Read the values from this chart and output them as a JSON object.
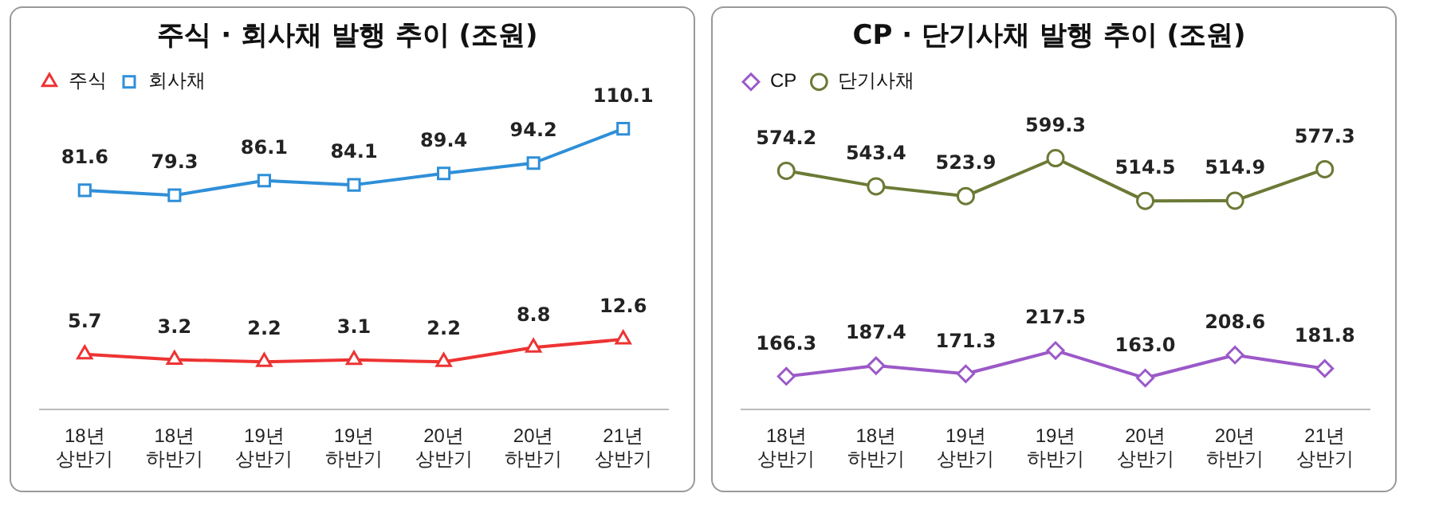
{
  "chart_data": [
    {
      "type": "line",
      "title": "주식 · 회사채 발행 추이 (조원)",
      "categories": [
        "18년\n상반기",
        "18년\n하반기",
        "19년\n상반기",
        "19년\n하반기",
        "20년\n상반기",
        "20년\n하반기",
        "21년\n상반기"
      ],
      "series": [
        {
          "name": "주식",
          "color": "#ee3333",
          "marker": "triangle",
          "values": [
            5.7,
            3.2,
            2.2,
            3.1,
            2.2,
            8.8,
            12.6
          ],
          "value_labels": [
            "5.7",
            "3.2",
            "2.2",
            "3.1",
            "2.2",
            "8.8",
            "12.6"
          ]
        },
        {
          "name": "회사채",
          "color": "#2f8fd8",
          "marker": "square",
          "values": [
            81.6,
            79.3,
            86.1,
            84.1,
            89.4,
            94.2,
            110.1
          ],
          "value_labels": [
            "81.6",
            "79.3",
            "86.1",
            "84.1",
            "89.4",
            "94.2",
            "110.1"
          ]
        }
      ],
      "tick_labels": "x",
      "legend": "top left",
      "grid": false
    },
    {
      "type": "line",
      "title": "CP · 단기사채 발행 추이 (조원)",
      "categories": [
        "18년\n상반기",
        "18년\n하반기",
        "19년\n상반기",
        "19년\n하반기",
        "20년\n상반기",
        "20년\n하반기",
        "21년\n상반기"
      ],
      "series": [
        {
          "name": "CP",
          "color": "#9b59c8",
          "marker": "diamond",
          "values": [
            166.3,
            187.4,
            171.3,
            217.5,
            163.0,
            208.6,
            181.8
          ],
          "value_labels": [
            "166.3",
            "187.4",
            "171.3",
            "217.5",
            "163.0",
            "208.6",
            "181.8"
          ]
        },
        {
          "name": "단기사채",
          "color": "#6b7a35",
          "marker": "circle",
          "values": [
            574.2,
            543.4,
            523.9,
            599.3,
            514.5,
            514.9,
            577.3
          ],
          "value_labels": [
            "574.2",
            "543.4",
            "523.9",
            "599.3",
            "514.5",
            "514.9",
            "577.3"
          ]
        }
      ],
      "tick_labels": "x",
      "legend": "top left",
      "grid": false
    }
  ]
}
